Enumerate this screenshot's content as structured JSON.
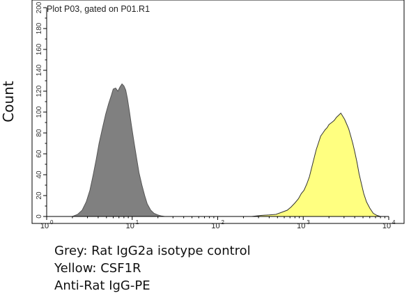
{
  "plot": {
    "title": "Plot P03, gated on P01.R1",
    "ylabel": "Count"
  },
  "caption": {
    "line1": "Grey: Rat IgG2a isotype control",
    "line2": "Yellow: CSF1R",
    "line3": "Anti-Rat IgG-PE"
  },
  "chart_data": {
    "type": "area",
    "title": "Plot P03, gated on P01.R1",
    "ylabel": "Count",
    "xlabel": "",
    "xscale": "log",
    "xlim": [
      1,
      10000
    ],
    "ylim": [
      0,
      200
    ],
    "x_ticks": [
      {
        "base": "10",
        "exp": "0",
        "value": 1
      },
      {
        "base": "10",
        "exp": "1",
        "value": 10
      },
      {
        "base": "10",
        "exp": "2",
        "value": 100
      },
      {
        "base": "10",
        "exp": "3",
        "value": 1000
      },
      {
        "base": "10",
        "exp": "4",
        "value": 10000
      }
    ],
    "y_ticks": [
      "0",
      "20",
      "40",
      "60",
      "80",
      "100",
      "120",
      "140",
      "160",
      "180",
      "200"
    ],
    "grid": false,
    "series": [
      {
        "color": "#808080",
        "stroke": "#555555",
        "points": [
          [
            2.0,
            0
          ],
          [
            2.3,
            2
          ],
          [
            2.6,
            6
          ],
          [
            2.9,
            14
          ],
          [
            3.2,
            25
          ],
          [
            3.5,
            40
          ],
          [
            3.8,
            55
          ],
          [
            4.1,
            70
          ],
          [
            4.5,
            85
          ],
          [
            4.9,
            98
          ],
          [
            5.3,
            108
          ],
          [
            5.7,
            116
          ],
          [
            6.0,
            122
          ],
          [
            6.4,
            123
          ],
          [
            6.8,
            120
          ],
          [
            7.2,
            124
          ],
          [
            7.6,
            127
          ],
          [
            8.0,
            125
          ],
          [
            8.4,
            121
          ],
          [
            8.8,
            113
          ],
          [
            9.3,
            100
          ],
          [
            9.8,
            87
          ],
          [
            10.5,
            71
          ],
          [
            11.2,
            57
          ],
          [
            12.0,
            42
          ],
          [
            13.0,
            30
          ],
          [
            14.0,
            20
          ],
          [
            15.0,
            12
          ],
          [
            16.5,
            6
          ],
          [
            18.0,
            3
          ],
          [
            20.0,
            1.5
          ],
          [
            22.0,
            0.5
          ],
          [
            24.0,
            0
          ]
        ]
      },
      {
        "color": "#ffff80",
        "stroke": "#333333",
        "points": [
          [
            250,
            0
          ],
          [
            320,
            1
          ],
          [
            400,
            1.5
          ],
          [
            480,
            2
          ],
          [
            560,
            4
          ],
          [
            650,
            6
          ],
          [
            720,
            9
          ],
          [
            800,
            13
          ],
          [
            880,
            17
          ],
          [
            950,
            22
          ],
          [
            1020,
            25
          ],
          [
            1100,
            31
          ],
          [
            1180,
            38
          ],
          [
            1250,
            46
          ],
          [
            1330,
            55
          ],
          [
            1420,
            64
          ],
          [
            1500,
            70
          ],
          [
            1600,
            77
          ],
          [
            1700,
            80
          ],
          [
            1800,
            83
          ],
          [
            1900,
            85
          ],
          [
            2000,
            88
          ],
          [
            2150,
            90
          ],
          [
            2300,
            92
          ],
          [
            2450,
            95
          ],
          [
            2600,
            97
          ],
          [
            2750,
            99
          ],
          [
            2900,
            96
          ],
          [
            3050,
            93
          ],
          [
            3200,
            89
          ],
          [
            3400,
            84
          ],
          [
            3600,
            77
          ],
          [
            3800,
            70
          ],
          [
            4000,
            62
          ],
          [
            4250,
            52
          ],
          [
            4500,
            41
          ],
          [
            4800,
            31
          ],
          [
            5100,
            22
          ],
          [
            5500,
            14
          ],
          [
            6000,
            8
          ],
          [
            6600,
            3
          ],
          [
            7300,
            1
          ],
          [
            8000,
            0
          ]
        ]
      }
    ]
  }
}
